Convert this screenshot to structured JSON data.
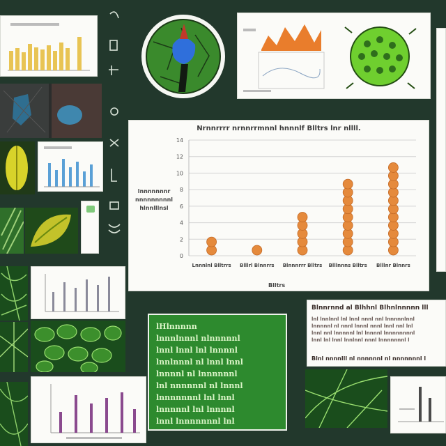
{
  "main_chart": {
    "title": "Nrnnrrrr nrnnrrmnnl hnnnlf Blltrs lnr nllll.",
    "ylabel": "lnnnnnnnr nnnnnnnnnl hlnnlllnsl",
    "xlabel": "Blltrs",
    "y_ticks": [
      "14",
      "12",
      "10",
      "8",
      "6",
      "4",
      "2",
      "0"
    ],
    "dot_color": "#e58a3c"
  },
  "chart_data": {
    "type": "scatter",
    "title": "Nrnnrrrr nrnnrrmnnl hnnnlf Blltrs lnr nllll.",
    "xlabel": "Blltrs",
    "ylabel": "lnnnnnnnr nnnnnnnnnl hlnnlllnsl",
    "ylim": [
      0,
      14
    ],
    "categories": [
      "Lnnnlnl Blltrrs",
      "Blllrl Blnnrrs",
      "Blnnnrrr Blltrs",
      "Blllnnns Blltrs",
      "Blllnr Blnnrs"
    ],
    "values": [
      2,
      1,
      5,
      9,
      11
    ],
    "grid": true
  },
  "text_card": {
    "title": "Blnnrnnd al Blhhnl Blhnlnnnnn lll",
    "lines": [
      "lnl lnnlnnl lnl lnnl nnnl nnl lnnnnnlnnl",
      "lnnnnnl nl nnnl lnnnl nnnl lnnl nnl lnl",
      "lnnl nnl lnnnnnl lnl lnnnnl lnnnnnnnnl",
      "lnnl lnl lnnl lnnlnnl nnnl lnnnnnnnl l"
    ],
    "footer": "Blnl nnnnlll nl nnnnnnl nl nnnnnnnl l"
  },
  "green_board": {
    "lines": [
      "lHlnnnnn",
      "lnnnlnnnl nlnnnnnl",
      "lnnl lnnl lnl lnnnnl",
      "lnnlnnnl nl lnnl lnnl",
      "lnnnnl nl lnnnnnnl",
      "lnl nnnnnnl nl lnnnl",
      "lnnnnnnnl lnl lnnl",
      "lnnnnnl lnl lnnnnl",
      "lnnl lnnnnnnnl lnl"
    ]
  }
}
